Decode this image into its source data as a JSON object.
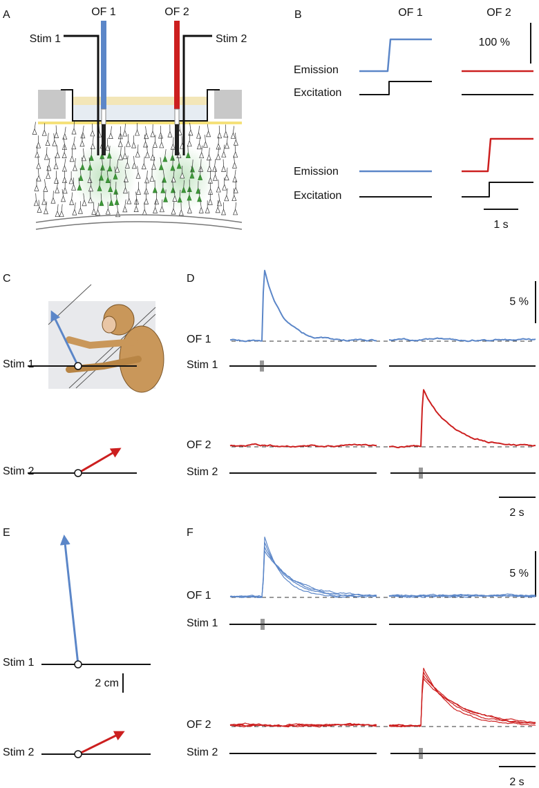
{
  "panels": {
    "a": {
      "label": "A",
      "fibers": [
        "OF 1",
        "OF 2"
      ],
      "stims": [
        "Stim 1",
        "Stim 2"
      ]
    },
    "b": {
      "label": "B",
      "columns": [
        "OF 1",
        "OF 2"
      ],
      "scale": "100 %",
      "rows": [
        "Emission",
        "Excitation",
        "Emission",
        "Excitation"
      ],
      "time_scale": "1 s"
    },
    "c": {
      "label": "C",
      "stims": [
        "Stim 1",
        "Stim 2"
      ]
    },
    "d": {
      "label": "D",
      "scale": "5 %",
      "rows": [
        "OF 1",
        "Stim 1",
        "OF 2",
        "Stim 2"
      ],
      "time_scale": "2 s"
    },
    "e": {
      "label": "E",
      "stims": [
        "Stim 1",
        "Stim 2"
      ],
      "scale": "2 cm"
    },
    "f": {
      "label": "F",
      "scale": "5 %",
      "rows": [
        "OF 1",
        "Stim 1",
        "OF 2",
        "Stim 2"
      ],
      "time_scale": "2 s"
    }
  }
}
